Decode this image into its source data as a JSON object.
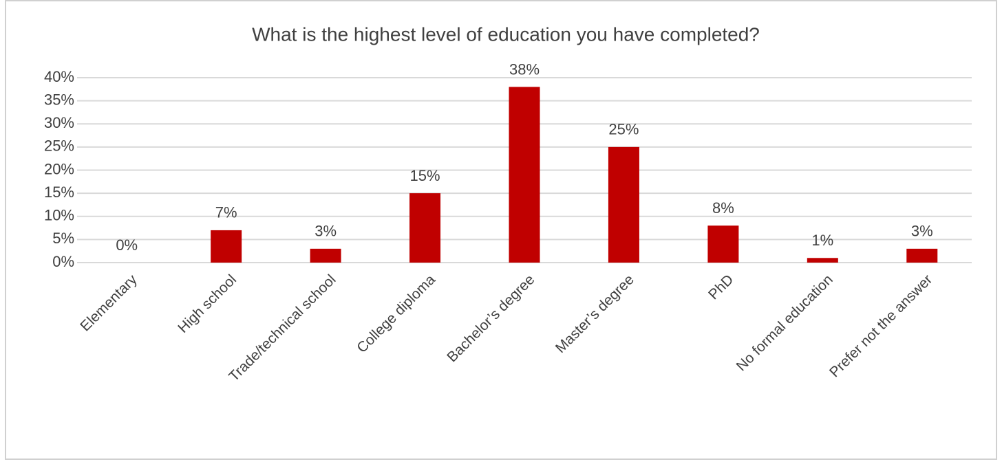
{
  "chart_data": {
    "type": "bar",
    "title": "What is the highest level of education you have completed?",
    "categories": [
      "Elementary",
      "High school",
      "Trade/technical school",
      "College diploma",
      "Bachelor’s degree",
      "Master’s degree",
      "PhD",
      "No formal education",
      "Prefer not the answer"
    ],
    "values": [
      0,
      7,
      3,
      15,
      38,
      25,
      8,
      1,
      3
    ],
    "value_labels": [
      "0%",
      "7%",
      "3%",
      "15%",
      "38%",
      "25%",
      "8%",
      "1%",
      "3%"
    ],
    "color": "#c00000",
    "ylim": [
      0,
      40
    ],
    "yticks": [
      {
        "value": 0,
        "label": "0%"
      },
      {
        "value": 5,
        "label": "5%"
      },
      {
        "value": 10,
        "label": "10%"
      },
      {
        "value": 15,
        "label": "15%"
      },
      {
        "value": 20,
        "label": "20%"
      },
      {
        "value": 25,
        "label": "25%"
      },
      {
        "value": 30,
        "label": "30%"
      },
      {
        "value": 35,
        "label": "35%"
      },
      {
        "value": 40,
        "label": "40%"
      }
    ],
    "grid": true
  }
}
